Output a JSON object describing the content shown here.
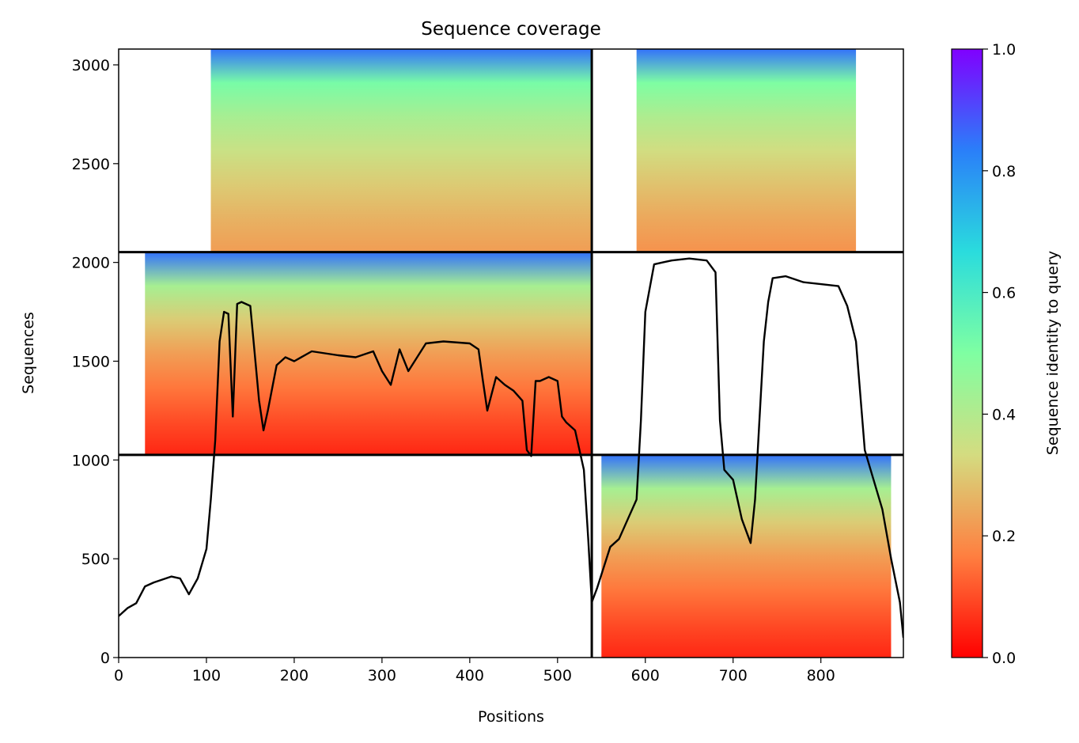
{
  "chart_data": {
    "type": "heatmap",
    "title": "Sequence coverage",
    "xlabel": "Positions",
    "ylabel": "Sequences",
    "colorbar_label": "Sequence identity to query",
    "xlim": [
      0,
      894
    ],
    "ylim": [
      0,
      3080
    ],
    "xticks": [
      0,
      100,
      200,
      300,
      400,
      500,
      600,
      700,
      800
    ],
    "yticks": [
      0,
      500,
      1000,
      1500,
      2000,
      2500,
      3000
    ],
    "colorbar_ticks": [
      "0.0",
      "0.2",
      "0.4",
      "0.6",
      "0.8",
      "1.0"
    ],
    "colormap": "rainbow",
    "colormap_stops": [
      "#ff0000",
      "#ff7f40",
      "#d4dc80",
      "#7fffa2",
      "#2adcdd",
      "#2a7ff9",
      "#8000ff"
    ],
    "block_boundaries": {
      "x": [
        539
      ],
      "y": [
        1026,
        2052
      ]
    },
    "blocks": [
      {
        "block": "top-left",
        "x": [
          0,
          539
        ],
        "y": [
          2052,
          3080
        ],
        "coverage_x": [
          105,
          539
        ],
        "identity_top": 0.85,
        "identity_bottom": 0.22
      },
      {
        "block": "top-right",
        "x": [
          539,
          894
        ],
        "y": [
          2052,
          3080
        ],
        "coverage_x": [
          590,
          840
        ],
        "identity_top": 0.85,
        "identity_bottom": 0.2
      },
      {
        "block": "middle-left",
        "x": [
          0,
          539
        ],
        "y": [
          1026,
          2052
        ],
        "coverage_x": [
          30,
          539
        ],
        "identity_top": 0.85,
        "identity_bottom": 0.05
      },
      {
        "block": "bottom-right",
        "x": [
          539,
          894
        ],
        "y": [
          0,
          1026
        ],
        "coverage_x": [
          550,
          880
        ],
        "identity_top": 0.85,
        "identity_bottom": 0.05
      }
    ],
    "coverage_line": {
      "x": [
        0,
        10,
        20,
        30,
        40,
        50,
        60,
        70,
        80,
        85,
        90,
        100,
        105,
        110,
        115,
        120,
        125,
        130,
        135,
        140,
        150,
        160,
        165,
        170,
        180,
        190,
        200,
        220,
        250,
        270,
        290,
        300,
        310,
        320,
        330,
        350,
        370,
        400,
        410,
        415,
        420,
        430,
        440,
        450,
        460,
        465,
        470,
        475,
        480,
        490,
        500,
        505,
        510,
        520,
        530,
        535,
        539,
        545,
        560,
        570,
        580,
        590,
        595,
        600,
        610,
        620,
        630,
        650,
        670,
        680,
        685,
        690,
        700,
        710,
        720,
        725,
        730,
        735,
        740,
        745,
        760,
        780,
        800,
        820,
        830,
        840,
        850,
        860,
        870,
        880,
        890,
        894
      ],
      "y": [
        210,
        250,
        275,
        360,
        380,
        395,
        410,
        400,
        320,
        360,
        400,
        550,
        800,
        1100,
        1600,
        1750,
        1740,
        1220,
        1790,
        1800,
        1780,
        1300,
        1150,
        1250,
        1480,
        1520,
        1500,
        1550,
        1530,
        1520,
        1550,
        1450,
        1380,
        1560,
        1450,
        1590,
        1600,
        1590,
        1560,
        1400,
        1250,
        1420,
        1380,
        1350,
        1300,
        1050,
        1020,
        1400,
        1400,
        1420,
        1400,
        1220,
        1190,
        1150,
        950,
        600,
        280,
        350,
        560,
        600,
        700,
        800,
        1200,
        1750,
        1990,
        2000,
        2010,
        2020,
        2010,
        1950,
        1200,
        950,
        900,
        700,
        580,
        800,
        1200,
        1600,
        1800,
        1920,
        1930,
        1900,
        1890,
        1880,
        1780,
        1600,
        1050,
        900,
        750,
        500,
        280,
        100
      ]
    }
  }
}
